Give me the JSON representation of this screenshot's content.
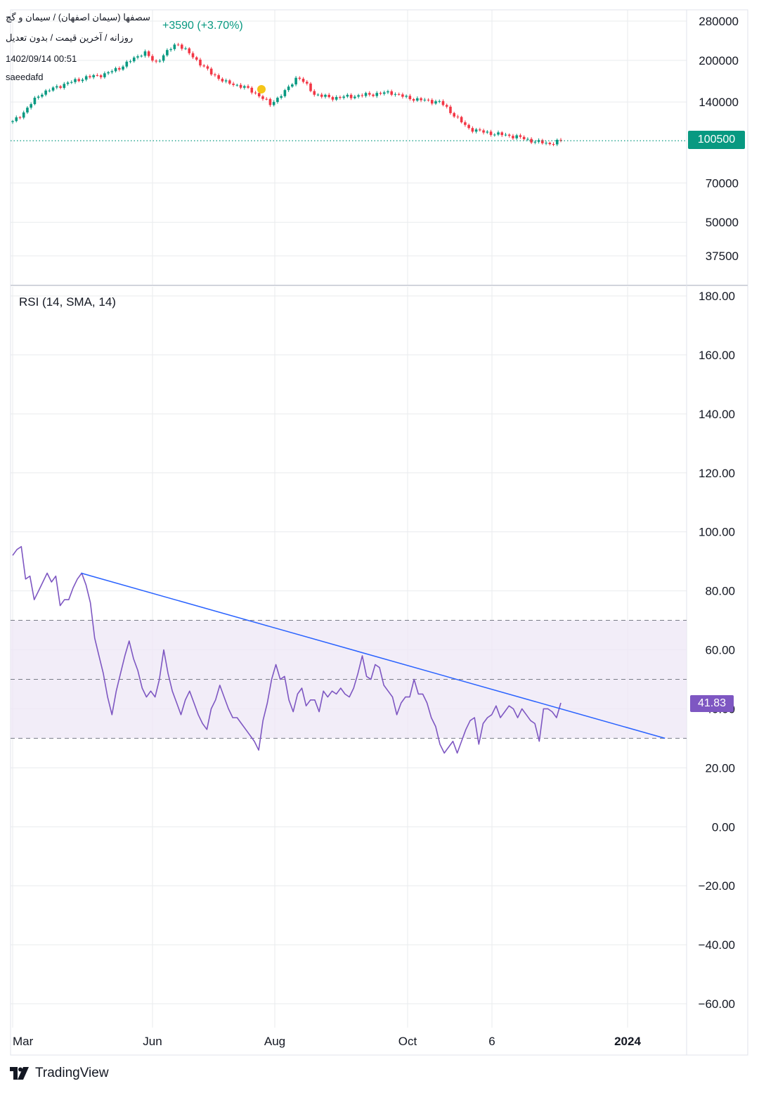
{
  "header": {
    "symbol_line": "سصفها (سیمان اصفهان) / سیمان و گچ",
    "change_text": "+3590 (+3.70%)",
    "settings_line": "روزانه / آخرین قیمت / بدون تعدیل",
    "datetime": "1402/09/14 00:51",
    "author": "saeedafd"
  },
  "price_pane": {
    "last_price_label": "100500",
    "colors": {
      "up": "#089981",
      "down": "#f23645",
      "marker": "#f5c518"
    },
    "y_ticks": [
      "280000",
      "200000",
      "140000",
      "100500",
      "70000",
      "50000",
      "37500"
    ],
    "y_tick_values": [
      280000,
      200000,
      140000,
      100500,
      70000,
      50000,
      37500
    ],
    "scale": "log"
  },
  "rsi_pane": {
    "title": "RSI (14, SMA, 14)",
    "last_value_label": "41.83",
    "line_color": "#7e57c2",
    "trendline_color": "#2962ff",
    "band_color": "#ede7f6",
    "y_ticks": [
      "180.00",
      "160.00",
      "140.00",
      "120.00",
      "100.00",
      "80.00",
      "60.00",
      "40.00",
      "20.00",
      "0.00",
      "−20.00",
      "−40.00",
      "−60.00"
    ],
    "y_tick_values": [
      180,
      160,
      140,
      120,
      100,
      80,
      60,
      40,
      20,
      0,
      -20,
      -40,
      -60
    ],
    "levels": [
      70,
      50,
      30
    ]
  },
  "x_axis": {
    "ticks": [
      {
        "label": "Mar",
        "bold": false
      },
      {
        "label": "Jun",
        "bold": false
      },
      {
        "label": "Aug",
        "bold": false
      },
      {
        "label": "Oct",
        "bold": false
      },
      {
        "label": "6",
        "bold": false
      },
      {
        "label": "2024",
        "bold": true
      }
    ]
  },
  "chart_data": [
    {
      "type": "candlestick",
      "title": "سصفها (سیمان اصفهان) / سیمان و گچ",
      "y_scale": "log",
      "last_price": 100500,
      "close_trend": [
        {
          "t": 0,
          "v": 118000
        },
        {
          "t": 0.02,
          "v": 128000
        },
        {
          "t": 0.05,
          "v": 150000
        },
        {
          "t": 0.09,
          "v": 162000
        },
        {
          "t": 0.13,
          "v": 172000
        },
        {
          "t": 0.17,
          "v": 178000
        },
        {
          "t": 0.2,
          "v": 190000
        },
        {
          "t": 0.24,
          "v": 215000
        },
        {
          "t": 0.26,
          "v": 195000
        },
        {
          "t": 0.3,
          "v": 232000
        },
        {
          "t": 0.33,
          "v": 205000
        },
        {
          "t": 0.36,
          "v": 180000
        },
        {
          "t": 0.39,
          "v": 165000
        },
        {
          "t": 0.42,
          "v": 160000
        },
        {
          "t": 0.45,
          "v": 148000
        },
        {
          "t": 0.47,
          "v": 137000
        },
        {
          "t": 0.5,
          "v": 155000
        },
        {
          "t": 0.52,
          "v": 175000
        },
        {
          "t": 0.55,
          "v": 150000
        },
        {
          "t": 0.58,
          "v": 145000
        },
        {
          "t": 0.62,
          "v": 147000
        },
        {
          "t": 0.66,
          "v": 150000
        },
        {
          "t": 0.69,
          "v": 152000
        },
        {
          "t": 0.72,
          "v": 145000
        },
        {
          "t": 0.75,
          "v": 142000
        },
        {
          "t": 0.78,
          "v": 140000
        },
        {
          "t": 0.8,
          "v": 128000
        },
        {
          "t": 0.83,
          "v": 112000
        },
        {
          "t": 0.86,
          "v": 108000
        },
        {
          "t": 0.89,
          "v": 106000
        },
        {
          "t": 0.92,
          "v": 104000
        },
        {
          "t": 0.95,
          "v": 100000
        },
        {
          "t": 0.98,
          "v": 98000
        },
        {
          "t": 1,
          "v": 100500
        }
      ]
    },
    {
      "type": "line",
      "title": "RSI (14, SMA, 14)",
      "ylim": [
        -60,
        180
      ],
      "last_value": 41.83,
      "bands": [
        70,
        50,
        30
      ],
      "series": [
        {
          "values": [
            92,
            94,
            95,
            84,
            85,
            77,
            80,
            83,
            86,
            83,
            85,
            75,
            77,
            77,
            81,
            84,
            86,
            82,
            76,
            64,
            58,
            52,
            44,
            38,
            46,
            52,
            58,
            63,
            57,
            53,
            47,
            44,
            46,
            44,
            50,
            60,
            52,
            46,
            42,
            38,
            43,
            46,
            42,
            38,
            35,
            33,
            40,
            43,
            48,
            44,
            40,
            37,
            37,
            35,
            33,
            31,
            29,
            26,
            36,
            42,
            50,
            55,
            50,
            51,
            43,
            39,
            45,
            47,
            41,
            43,
            43,
            39,
            46,
            44,
            46,
            45,
            47,
            45,
            44,
            47,
            52,
            58,
            51,
            50,
            55,
            54,
            48,
            46,
            44,
            38,
            42,
            44,
            44,
            50,
            45,
            45,
            42,
            37,
            34,
            28,
            25,
            27,
            29,
            25,
            29,
            33,
            36,
            37,
            28,
            35,
            37,
            38,
            41,
            37,
            39,
            41,
            40,
            37,
            40,
            38,
            36,
            35,
            29,
            40,
            40,
            39,
            37,
            42
          ]
        }
      ],
      "trendline": {
        "from": {
          "t": 0.125,
          "v": 86
        },
        "to": {
          "t": 1.19,
          "v": 30
        }
      }
    }
  ]
}
